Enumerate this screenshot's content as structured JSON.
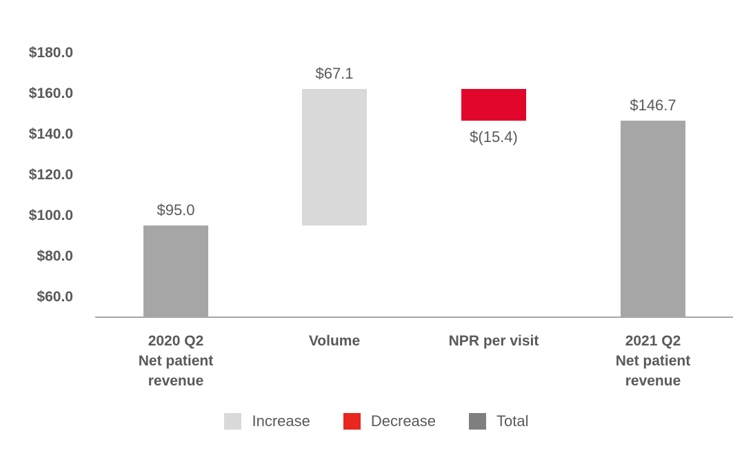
{
  "chart_data": {
    "type": "bar",
    "subtype": "waterfall",
    "title": "",
    "xlabel": "",
    "ylabel": "",
    "y_axis": {
      "ticks": [
        {
          "label": "$180.0",
          "value": 180
        },
        {
          "label": "$160.0",
          "value": 160
        },
        {
          "label": "$140.0",
          "value": 140
        },
        {
          "label": "$120.0",
          "value": 120
        },
        {
          "label": "$100.0",
          "value": 100
        },
        {
          "label": "$80.0",
          "value": 80
        },
        {
          "label": "$60.0",
          "value": 60
        }
      ],
      "axis_min": 50,
      "axis_max": 190,
      "gridlines": false
    },
    "bars": [
      {
        "category": "2020 Q2\nNet patient\nrevenue",
        "label": "$95.0",
        "value": 95.0,
        "start": 50,
        "end": 95.0,
        "series": "Total",
        "label_position": "above"
      },
      {
        "category": "Volume",
        "label": "$67.1",
        "value": 67.1,
        "start": 95.0,
        "end": 162.1,
        "series": "Increase",
        "label_position": "above"
      },
      {
        "category": "NPR per visit",
        "label": "$(15.4)",
        "value": -15.4,
        "start": 162.1,
        "end": 146.7,
        "series": "Decrease",
        "label_position": "below"
      },
      {
        "category": "2021 Q2\nNet patient\nrevenue",
        "label": "$146.7",
        "value": 146.7,
        "start": 50,
        "end": 146.7,
        "series": "Total",
        "label_position": "above"
      }
    ],
    "series_colors": {
      "Increase": "#d9d9d9",
      "Decrease": "#e2062c",
      "Total": "#a6a6a6"
    },
    "legend": {
      "position": "bottom",
      "items": [
        {
          "label": "Increase",
          "color": "#d9d9d9"
        },
        {
          "label": "Decrease",
          "color": "#e8271f"
        },
        {
          "label": "Total",
          "color": "#7f7f7f"
        }
      ]
    },
    "axis_line_color": "#a6a6a6",
    "text_color": "#595959"
  }
}
